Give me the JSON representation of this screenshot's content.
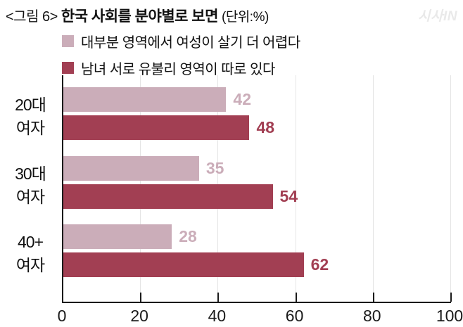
{
  "header": {
    "figure_label": "<그림 6>",
    "title": "한국 사회를 분야별로 보면",
    "unit_note": "(단위:%)",
    "watermark": "시사IN"
  },
  "legend": {
    "items": [
      {
        "label": "대부분 영역에서 여성이 살기 더 어렵다",
        "color": "#cbadb9"
      },
      {
        "label": "남녀 서로 유불리 영역이 따로 있다",
        "color": "#a23f53"
      }
    ]
  },
  "chart_data": {
    "type": "bar",
    "orientation": "horizontal",
    "title": "한국 사회를 분야별로 보면",
    "unit": "%",
    "categories": [
      "20대 여자",
      "30대 여자",
      "40+ 여자"
    ],
    "category_lines": [
      [
        "20대",
        "여자"
      ],
      [
        "30대",
        "여자"
      ],
      [
        "40+",
        "여자"
      ]
    ],
    "series": [
      {
        "name": "대부분 영역에서 여성이 살기 더 어렵다",
        "color": "#cbadb9",
        "values": [
          42,
          35,
          28
        ]
      },
      {
        "name": "남녀 서로 유불리 영역이 따로 있다",
        "color": "#a23f53",
        "values": [
          48,
          54,
          62
        ]
      }
    ],
    "xlim": [
      0,
      100
    ],
    "xticks": [
      0,
      20,
      40,
      60,
      80,
      100
    ],
    "grid": true,
    "legend_position": "top",
    "axis_color": "#1a1a1a",
    "gridline_color": "#e4e4e4"
  }
}
